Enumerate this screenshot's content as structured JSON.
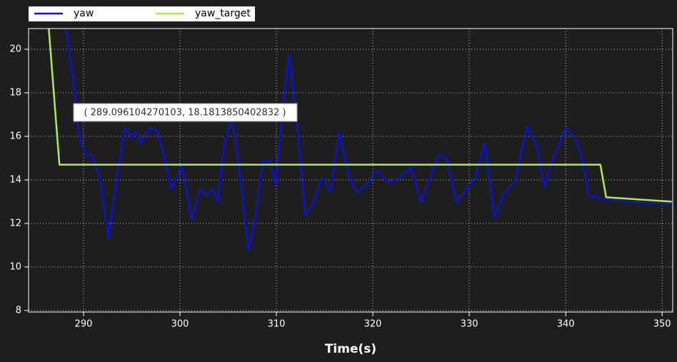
{
  "chart_data": {
    "type": "line",
    "xlabel": "Time(s)",
    "annotation": "( 289.096104270103, 18.1813850402832 )",
    "xlim": [
      284.3,
      351.1
    ],
    "ylim": [
      7.93,
      20.95
    ],
    "xticks": [
      290,
      300,
      310,
      320,
      330,
      340,
      350
    ],
    "yticks": [
      8,
      10,
      12,
      14,
      16,
      18,
      20
    ],
    "grid": true,
    "legend": "top-left",
    "series": [
      {
        "name": "yaw",
        "color": "#0a14d2",
        "x": [
          288.0,
          289.0,
          289.5,
          290.1,
          290.9,
          291.7,
          292.6,
          293.3,
          294.3,
          294.9,
          295.4,
          295.9,
          296.9,
          297.6,
          298.2,
          299.1,
          300.2,
          301.2,
          302.1,
          302.8,
          303.4,
          303.9,
          304.6,
          305.4,
          306.1,
          307.1,
          307.8,
          308.6,
          309.3,
          309.9,
          310.6,
          311.3,
          312.1,
          313.0,
          313.8,
          314.7,
          315.6,
          316.5,
          317.5,
          318.4,
          319.5,
          320.4,
          321.7,
          322.8,
          323.9,
          325.0,
          325.8,
          326.9,
          327.6,
          328.7,
          329.9,
          330.6,
          331.6,
          332.6,
          333.6,
          334.7,
          336.0,
          336.9,
          337.8,
          338.7,
          340.0,
          341.0,
          341.7,
          342.4,
          344.3,
          346.5,
          351.0
        ],
        "values": [
          21.5,
          18.3,
          16.2,
          15.2,
          15.1,
          14.1,
          11.3,
          13.7,
          16.4,
          16.0,
          16.2,
          15.7,
          16.4,
          16.3,
          15.4,
          13.6,
          14.7,
          12.2,
          13.6,
          13.3,
          13.6,
          13.0,
          15.7,
          16.9,
          14.7,
          10.8,
          12.3,
          14.9,
          14.9,
          13.8,
          17.0,
          19.8,
          16.7,
          12.4,
          12.9,
          14.1,
          13.5,
          16.2,
          14.2,
          13.4,
          13.9,
          14.4,
          13.9,
          14.1,
          14.6,
          13.0,
          14.0,
          15.2,
          15.0,
          13.0,
          13.7,
          14.1,
          15.7,
          12.3,
          13.4,
          13.9,
          16.5,
          15.7,
          13.7,
          15.0,
          16.4,
          15.9,
          15.0,
          13.3,
          13.1,
          13.0,
          12.9
        ]
      },
      {
        "name": "yaw_target",
        "color": "#aef03c",
        "x": [
          286.3,
          287.5,
          343.6,
          344.2,
          351.0
        ],
        "values": [
          21.5,
          14.7,
          14.7,
          13.2,
          13.0
        ]
      }
    ]
  }
}
